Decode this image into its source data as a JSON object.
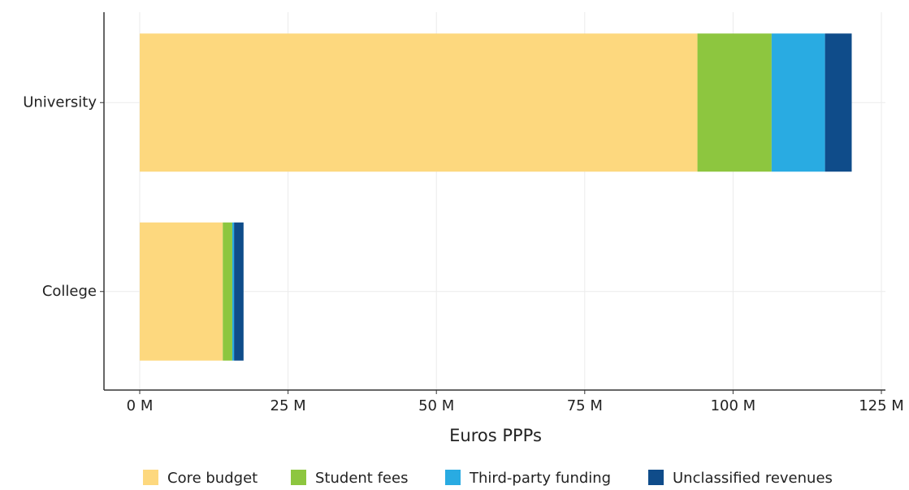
{
  "chart_data": {
    "type": "stacked_bar_horizontal",
    "x_label": "Euros PPPs",
    "categories": [
      "University",
      "College"
    ],
    "series": [
      {
        "name": "Core budget",
        "color": "#fdd87e",
        "values": [
          94,
          14
        ]
      },
      {
        "name": "Student fees",
        "color": "#8dc63f",
        "values": [
          12.5,
          1.6
        ]
      },
      {
        "name": "Third-party funding",
        "color": "#29abe2",
        "values": [
          9,
          0.3
        ]
      },
      {
        "name": "Unclassified revenues",
        "color": "#0f4c8a",
        "values": [
          4.5,
          1.6
        ]
      }
    ],
    "xlim": [
      0,
      125
    ],
    "xticks": [
      {
        "value": 0,
        "label": "0 M"
      },
      {
        "value": 25,
        "label": "25 M"
      },
      {
        "value": 50,
        "label": "50 M"
      },
      {
        "value": 75,
        "label": "75 M"
      },
      {
        "value": 100,
        "label": "100 M"
      },
      {
        "value": 125,
        "label": "125 M"
      }
    ],
    "grid": true,
    "legend": "bottom"
  }
}
